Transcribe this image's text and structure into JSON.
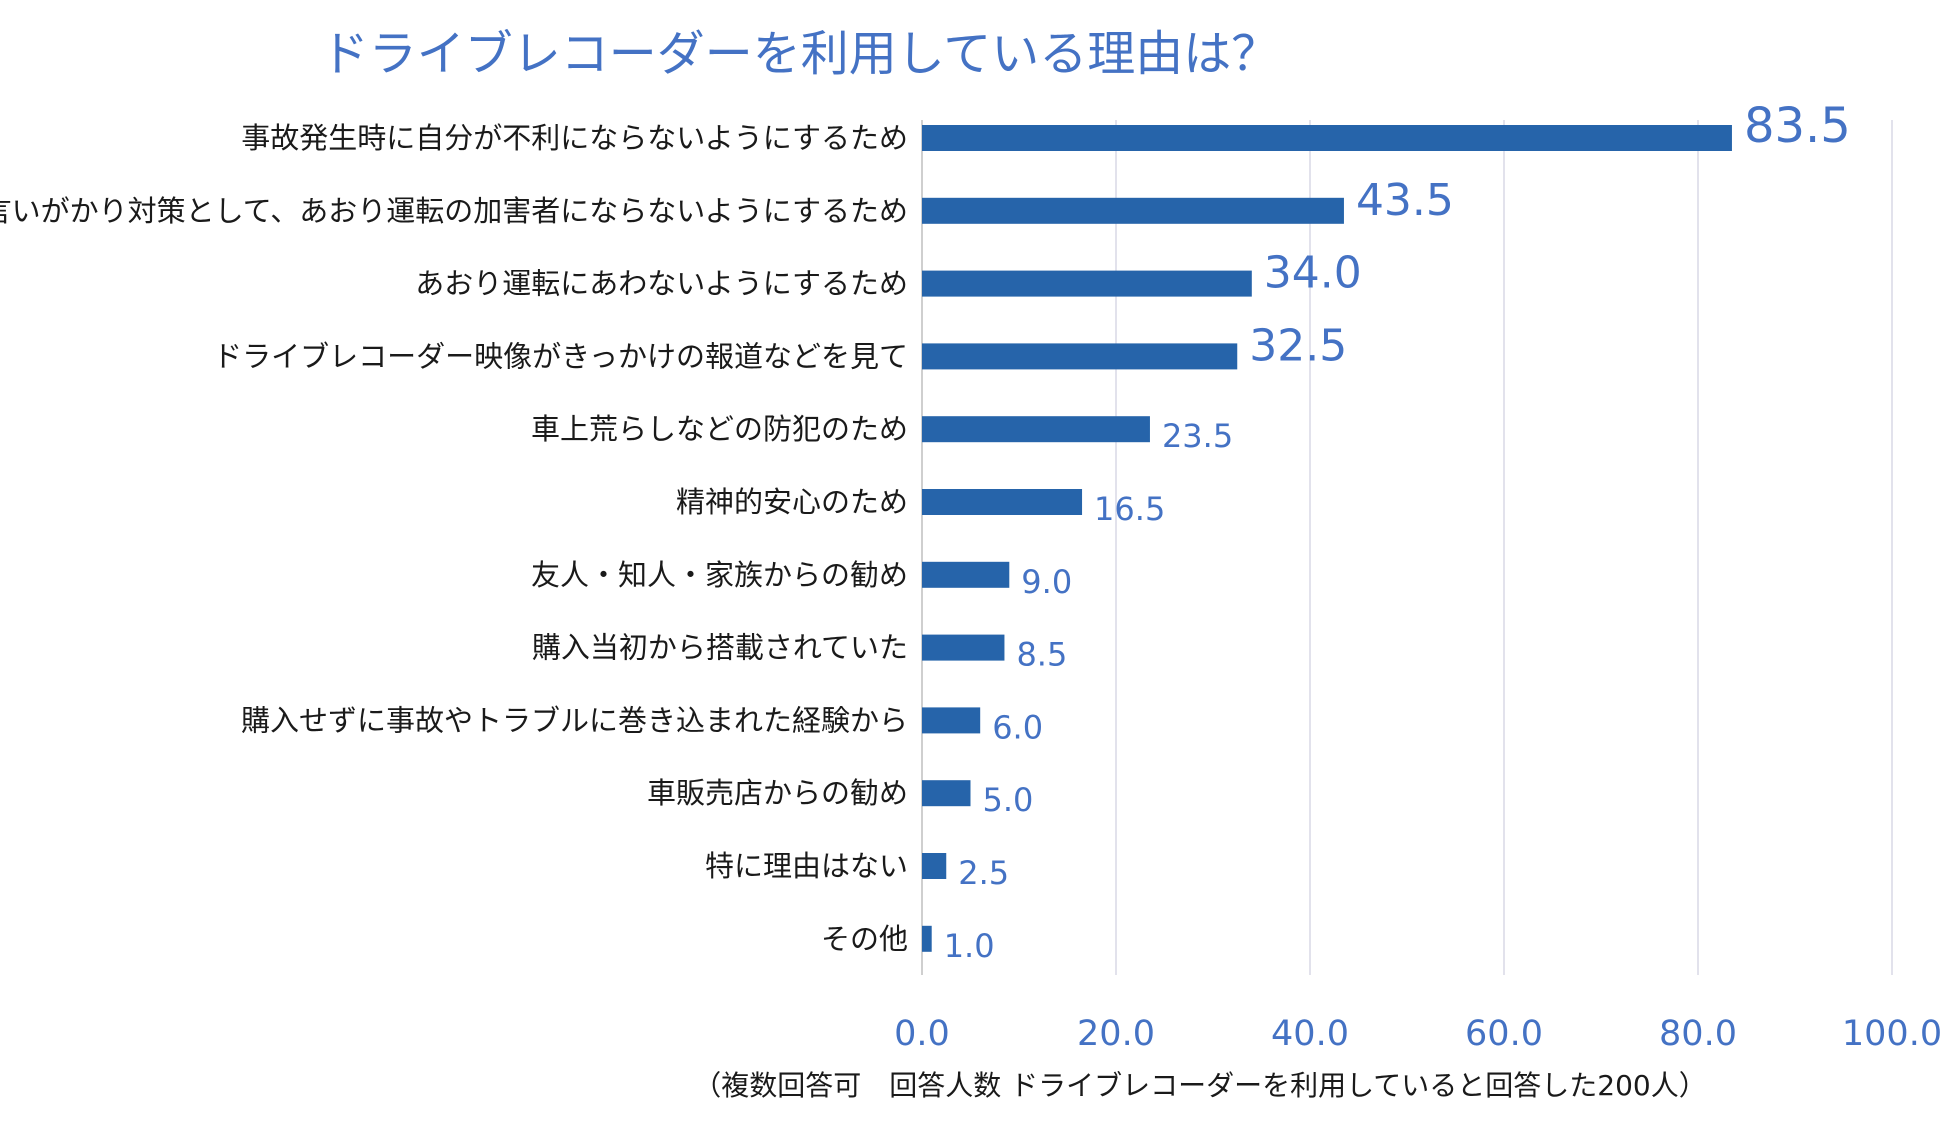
{
  "chart_data": {
    "type": "bar",
    "orientation": "horizontal",
    "title": "ドライブレコーダーを利用している理由は？",
    "categories": [
      "事故発生時に自分が不利にならないようにするため",
      "言いがかり対策として、あおり運転の加害者にならないようにするため",
      "あおり運転にあわないようにするため",
      "ドライブレコーダー映像がきっかけの報道などを見て",
      "車上荒らしなどの防犯のため",
      "精神的安心のため",
      "友人・知人・家族からの勧め",
      "購入当初から搭載されていた",
      "購入せずに事故やトラブルに巻き込まれた経験から",
      "車販売店からの勧め",
      "特に理由はない",
      "その他"
    ],
    "values": [
      83.5,
      43.5,
      34.0,
      32.5,
      23.5,
      16.5,
      9.0,
      8.5,
      6.0,
      5.0,
      2.5,
      1.0
    ],
    "value_labels": [
      "83.5",
      "43.5",
      "34.0",
      "32.5",
      "23.5",
      "16.5",
      "9.0",
      "8.5",
      "6.0",
      "5.0",
      "2.5",
      "1.0"
    ],
    "xlim": [
      0,
      100
    ],
    "xticks": [
      0,
      20,
      40,
      60,
      80,
      100
    ],
    "xtick_labels": [
      "0.0",
      "20.0",
      "40.0",
      "60.0",
      "80.0",
      "100.0"
    ],
    "grid": true,
    "xlabel": "",
    "ylabel": "",
    "footnote": "（複数回答可　回答人数 ドライブレコーダーを利用していると回答した200人）",
    "bar_color": "#2664AA",
    "accent_color": "#4472C4"
  }
}
